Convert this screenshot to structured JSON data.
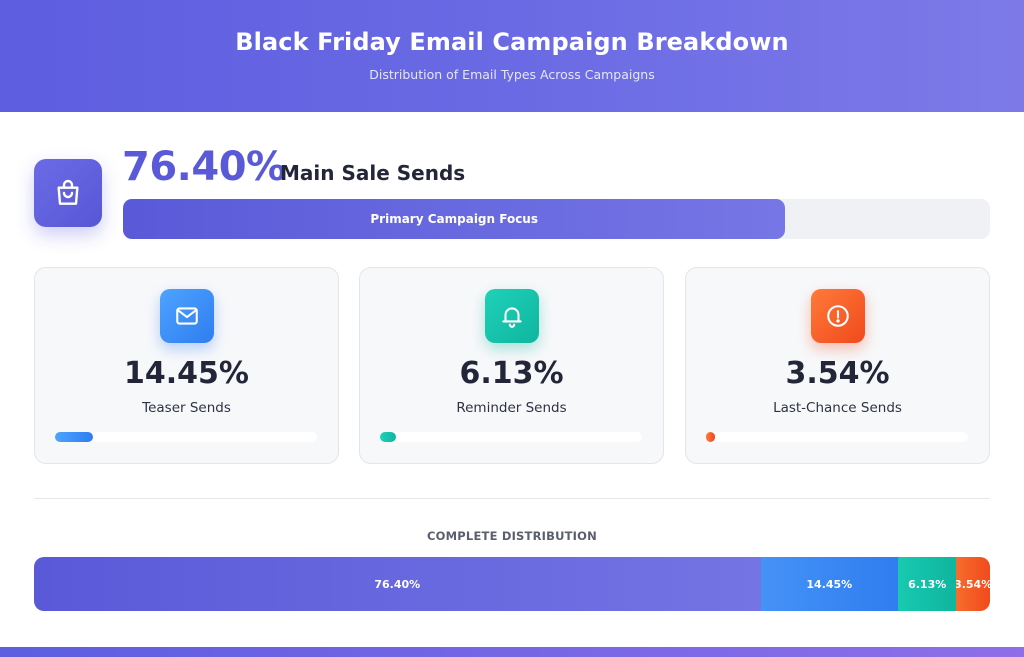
{
  "header": {
    "title": "Black Friday Email Campaign Breakdown",
    "subtitle": "Distribution of Email Types Across Campaigns"
  },
  "hero": {
    "icon": "shopping-bag-icon",
    "value_label": "76.40%",
    "label": "Main Sale Sends",
    "bar_label": "Primary Campaign Focus",
    "fraction": 0.764
  },
  "cards": [
    {
      "icon": "mail-icon",
      "value_label": "14.45%",
      "label": "Teaser Sends",
      "fraction": 0.1445,
      "color_start": "#4ea3ff",
      "color_end": "#2f7df0"
    },
    {
      "icon": "bell-icon",
      "value_label": "6.13%",
      "label": "Reminder Sends",
      "fraction": 0.0613,
      "color_start": "#1fd1b8",
      "color_end": "#0fb59f"
    },
    {
      "icon": "alert-icon",
      "value_label": "3.54%",
      "label": "Last-Chance Sends",
      "fraction": 0.0354,
      "color_start": "#ff7a3a",
      "color_end": "#f04a1c"
    }
  ],
  "distribution": {
    "title": "COMPLETE DISTRIBUTION"
  },
  "colors": {
    "main": "#5d5ee0",
    "teaser": "#3b8cf5",
    "reminder": "#14c4ac",
    "last_chance": "#f5612a"
  },
  "chart_data": {
    "type": "bar",
    "title": "Black Friday Email Campaign Breakdown",
    "subtitle": "Distribution of Email Types Across Campaigns",
    "categories": [
      "Main Sale Sends",
      "Teaser Sends",
      "Reminder Sends",
      "Last-Chance Sends"
    ],
    "values": [
      76.4,
      14.45,
      6.13,
      3.54
    ],
    "value_labels": [
      "76.40%",
      "14.45%",
      "6.13%",
      "3.54%"
    ],
    "ylim": [
      0,
      100
    ],
    "orientation": "horizontal-stacked"
  }
}
